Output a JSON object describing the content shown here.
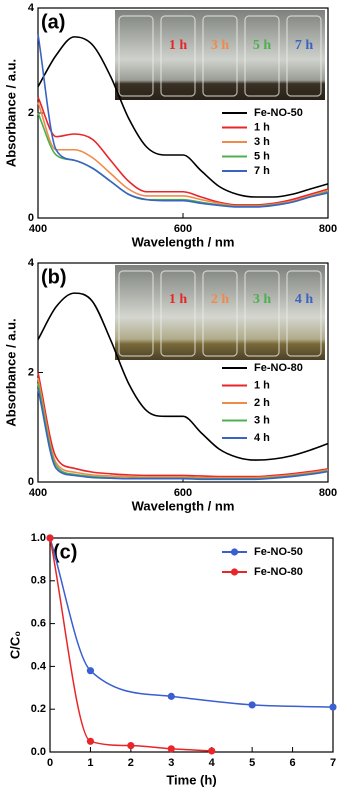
{
  "chart_data": [
    {
      "type": "line",
      "panel_label": "(a)",
      "xlabel": "Wavelength / nm",
      "ylabel": "Absorbance / a.u.",
      "x": [
        400,
        425,
        450,
        475,
        500,
        525,
        550,
        575,
        600,
        625,
        650,
        675,
        700,
        725,
        750,
        775,
        800
      ],
      "series": [
        {
          "name": "Fe-NO-50",
          "color": "#000000",
          "values": [
            2.5,
            3.1,
            3.45,
            3.3,
            2.7,
            1.9,
            1.35,
            1.2,
            1.2,
            0.9,
            0.6,
            0.45,
            0.4,
            0.4,
            0.45,
            0.55,
            0.65
          ]
        },
        {
          "name": "1 h",
          "color": "#e8262a",
          "values": [
            2.3,
            1.55,
            1.6,
            1.5,
            1.1,
            0.7,
            0.5,
            0.5,
            0.5,
            0.4,
            0.3,
            0.25,
            0.25,
            0.28,
            0.35,
            0.45,
            0.55
          ]
        },
        {
          "name": "3 h",
          "color": "#f08a4b",
          "values": [
            2.2,
            1.3,
            1.3,
            1.15,
            0.85,
            0.55,
            0.42,
            0.42,
            0.42,
            0.35,
            0.28,
            0.23,
            0.23,
            0.26,
            0.32,
            0.42,
            0.52
          ]
        },
        {
          "name": "5 h",
          "color": "#4cb050",
          "values": [
            2.0,
            1.2,
            1.1,
            0.95,
            0.7,
            0.45,
            0.35,
            0.35,
            0.35,
            0.3,
            0.25,
            0.22,
            0.22,
            0.25,
            0.3,
            0.4,
            0.5
          ]
        },
        {
          "name": "7 h",
          "color": "#3b63c4",
          "values": [
            3.5,
            1.3,
            1.1,
            0.95,
            0.7,
            0.45,
            0.35,
            0.33,
            0.33,
            0.28,
            0.24,
            0.21,
            0.21,
            0.24,
            0.3,
            0.4,
            0.48
          ]
        }
      ],
      "xlim": [
        400,
        800
      ],
      "xticks": [
        400,
        600,
        800
      ],
      "ylim": [
        0,
        4
      ],
      "yticks": [
        0,
        2,
        4
      ],
      "inset_labels": [
        "1 h",
        "3 h",
        "5 h",
        "7 h"
      ],
      "legend": "center-right"
    },
    {
      "type": "line",
      "panel_label": "(b)",
      "xlabel": "Wavelength / nm",
      "ylabel": "Absorbance / a.u.",
      "x": [
        400,
        425,
        450,
        475,
        500,
        525,
        550,
        575,
        600,
        625,
        650,
        675,
        700,
        725,
        750,
        775,
        800
      ],
      "series": [
        {
          "name": "Fe-NO-80",
          "color": "#000000",
          "values": [
            2.6,
            3.2,
            3.45,
            3.3,
            2.6,
            1.8,
            1.3,
            1.2,
            1.2,
            0.9,
            0.6,
            0.45,
            0.4,
            0.42,
            0.48,
            0.58,
            0.7
          ]
        },
        {
          "name": "1 h",
          "color": "#e8262a",
          "values": [
            2.0,
            0.45,
            0.25,
            0.18,
            0.15,
            0.13,
            0.12,
            0.12,
            0.12,
            0.11,
            0.1,
            0.1,
            0.1,
            0.12,
            0.15,
            0.19,
            0.24
          ]
        },
        {
          "name": "2 h",
          "color": "#f08a4b",
          "values": [
            1.9,
            0.35,
            0.18,
            0.13,
            0.11,
            0.1,
            0.09,
            0.09,
            0.09,
            0.08,
            0.08,
            0.08,
            0.08,
            0.1,
            0.13,
            0.17,
            0.22
          ]
        },
        {
          "name": "3 h",
          "color": "#4cb050",
          "values": [
            1.8,
            0.3,
            0.14,
            0.1,
            0.08,
            0.07,
            0.07,
            0.07,
            0.07,
            0.06,
            0.06,
            0.06,
            0.06,
            0.08,
            0.11,
            0.15,
            0.2
          ]
        },
        {
          "name": "4 h",
          "color": "#3b63c4",
          "values": [
            1.7,
            0.25,
            0.12,
            0.08,
            0.07,
            0.06,
            0.06,
            0.06,
            0.06,
            0.05,
            0.05,
            0.05,
            0.05,
            0.07,
            0.1,
            0.14,
            0.19
          ]
        }
      ],
      "xlim": [
        400,
        800
      ],
      "xticks": [
        400,
        600,
        800
      ],
      "ylim": [
        0,
        4
      ],
      "yticks": [
        0,
        2,
        4
      ],
      "inset_labels": [
        "1 h",
        "2 h",
        "3 h",
        "4 h"
      ],
      "legend": "center-right"
    },
    {
      "type": "scatter",
      "panel_label": "(c)",
      "xlabel": "Time (h)",
      "ylabel": "C/C₀",
      "series": [
        {
          "name": "Fe-NO-50",
          "color": "#3a5fd0",
          "x": [
            0,
            1,
            3,
            5,
            7
          ],
          "values": [
            1.0,
            0.38,
            0.26,
            0.22,
            0.21
          ]
        },
        {
          "name": "Fe-NO-80",
          "color": "#e8262a",
          "x": [
            0,
            1,
            2,
            3,
            4
          ],
          "values": [
            1.0,
            0.05,
            0.03,
            0.015,
            0.005
          ]
        }
      ],
      "xlim": [
        0,
        7
      ],
      "xticks": [
        0,
        1,
        2,
        3,
        4,
        5,
        6,
        7
      ],
      "ylim": [
        0,
        1
      ],
      "yticks": [
        {
          "value": 0,
          "label": "0.0"
        },
        {
          "value": 0.2,
          "label": "0.2"
        },
        {
          "value": 0.4,
          "label": "0.4"
        },
        {
          "value": 0.6,
          "label": "0.6"
        },
        {
          "value": 0.8,
          "label": "0.8"
        },
        {
          "value": 1,
          "label": "1.0"
        }
      ],
      "legend": "upper-right"
    }
  ]
}
